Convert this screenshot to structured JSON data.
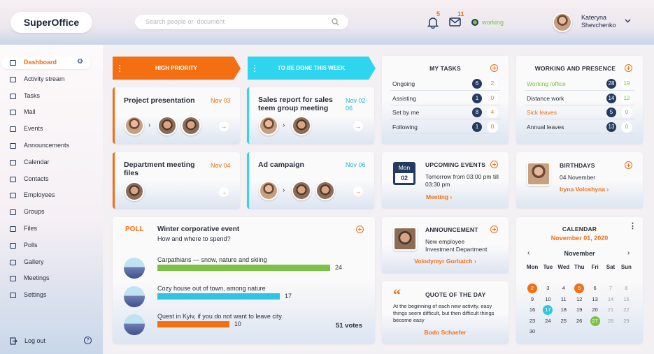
{
  "header": {
    "logo": "SuperOffice",
    "search_placeholder": "Search people or  document",
    "notifications": "5",
    "messages": "11",
    "status": "working",
    "user_first_name": "Kateryna",
    "user_last_name": "Shevchenko"
  },
  "sidebar": {
    "items": [
      "Dashboard",
      "Activity stream",
      "Tasks",
      "Mail",
      "Events",
      "Announcements",
      "Calendar",
      "Contacts",
      "Employees",
      "Groups",
      "Files",
      "Polls",
      "Gallery",
      "Meetings",
      "Settings"
    ],
    "logout": "Log out"
  },
  "columns": {
    "high_priority": "HIGH PRIORITY",
    "this_week": "TO BE DONE THIS WEEK"
  },
  "high_priority": [
    {
      "title": "Project presentation",
      "date": "Nov 03"
    },
    {
      "title": "Department meeting files",
      "date": "Nov 04"
    }
  ],
  "this_week": [
    {
      "title": "Sales report for sales teem group meeting",
      "date": "Nov 02-06"
    },
    {
      "title": "Ad campaign",
      "date": "Nov 06"
    }
  ],
  "my_tasks": {
    "title": "MY TASKS",
    "rows": [
      {
        "label": "Ongoing",
        "total": 6,
        "new": 2
      },
      {
        "label": "Assisting",
        "total": 1,
        "new": 0
      },
      {
        "label": "Set by me",
        "total": 8,
        "new": 4
      },
      {
        "label": "Following",
        "total": 1,
        "new": 0
      }
    ]
  },
  "presence": {
    "title": "WORKING AND PRESENCE",
    "rows": [
      {
        "label": "Working /office",
        "total": 28,
        "new": 19
      },
      {
        "label": "Distance work",
        "total": 14,
        "new": 12
      },
      {
        "label": "Sick leaves",
        "total": 5,
        "new": 0
      },
      {
        "label": "Annual leaves",
        "total": 13,
        "new": 0
      }
    ]
  },
  "upcoming_events": {
    "title": "UPCOMING EVENTS",
    "weekday": "Mon",
    "day": "02",
    "text": "Tomorrow from 03:00 pm till 03:30 pm",
    "link": "Meeting"
  },
  "birthdays": {
    "title": "BIRTHDAYS",
    "date": "04 November",
    "name": "Iryna Voloshyna"
  },
  "announcement": {
    "title": "ANNOUNCEMENT",
    "text": "New employee Investment Department",
    "link": "Volodymyr Gorbatch"
  },
  "quote": {
    "title": "QUOTE OF THE DAY",
    "text": "At the beginning of each new activity, easy things seem difficult, but then difficult things become easy",
    "author": "Bodo Schaefer"
  },
  "poll": {
    "tag": "POLL",
    "title": "Winter corporative event",
    "question": "How and where to spend?",
    "options": [
      {
        "label": "Carpathians — snow, nature and skiing",
        "votes": 24,
        "color": "#7bc144"
      },
      {
        "label": "Cozy house out of town, among nature",
        "votes": 17,
        "color": "#2dc5e0"
      },
      {
        "label": "Quest in Kyiv, if you do not want to leave city",
        "votes": 10,
        "color": "#f36f12"
      }
    ],
    "total": "51 votes"
  },
  "calendar": {
    "title": "CALENDAR",
    "date": "November 01, 2020",
    "month": "November",
    "weekdays": [
      "Mon",
      "Tue",
      "Wed",
      "Thu",
      "Fri",
      "Sat",
      "Sun"
    ],
    "days": [
      {
        "value": 2,
        "color": "#f36f12"
      },
      3,
      4,
      {
        "value": 5,
        "color": "#f36f12"
      },
      6,
      7,
      8,
      9,
      10,
      11,
      12,
      13,
      14,
      15,
      16,
      {
        "value": 17,
        "color": "#2dc5e0"
      },
      18,
      19,
      20,
      21,
      22,
      23,
      24,
      25,
      26,
      {
        "value": 27,
        "color": "#7bc144"
      },
      28,
      29,
      30
    ]
  }
}
